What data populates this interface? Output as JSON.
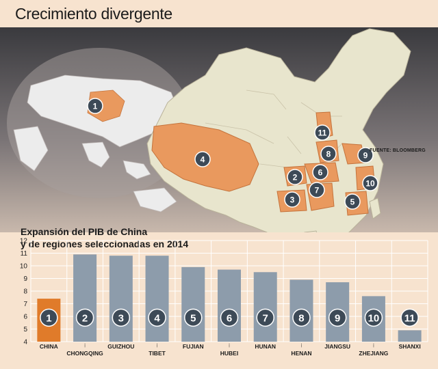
{
  "title": "Crecimiento divergente",
  "subtitle_line1": "Expansión del PIB de China",
  "subtitle_line2": "y de regiones seleccionadas en 2014",
  "source": "FUENTE: BLOOMBERG",
  "colors": {
    "background": "#f7e3cf",
    "china_bar": "#e07b2a",
    "region_bar": "#8d9cab",
    "badge": "#3d4a57",
    "highlight_region": "#e9995e",
    "land": "#e8e5cd"
  },
  "map_markers": [
    {
      "label": "1"
    },
    {
      "label": "2"
    },
    {
      "label": "3"
    },
    {
      "label": "4"
    },
    {
      "label": "5"
    },
    {
      "label": "6"
    },
    {
      "label": "7"
    },
    {
      "label": "8"
    },
    {
      "label": "9"
    },
    {
      "label": "10"
    },
    {
      "label": "11"
    }
  ],
  "chart_data": {
    "type": "bar",
    "title": "Expansión del PIB de China y de regiones seleccionadas en 2014",
    "categories": [
      "CHINA",
      "CHONGQING",
      "GUIZHOU",
      "TIBET",
      "FUJIAN",
      "HUBEI",
      "HUNAN",
      "HENAN",
      "JIANGSU",
      "ZHEJIANG",
      "SHANXI"
    ],
    "badges": [
      "1",
      "2",
      "3",
      "4",
      "5",
      "6",
      "7",
      "8",
      "9",
      "10",
      "11"
    ],
    "values": [
      7.4,
      10.9,
      10.8,
      10.8,
      9.9,
      9.7,
      9.5,
      8.9,
      8.7,
      7.6,
      4.9
    ],
    "ylim": [
      4,
      12
    ],
    "yticks": [
      "4",
      "5",
      "6",
      "7",
      "8",
      "9",
      "10",
      "11",
      "12"
    ],
    "grid": true,
    "xlabel": "",
    "ylabel": ""
  }
}
